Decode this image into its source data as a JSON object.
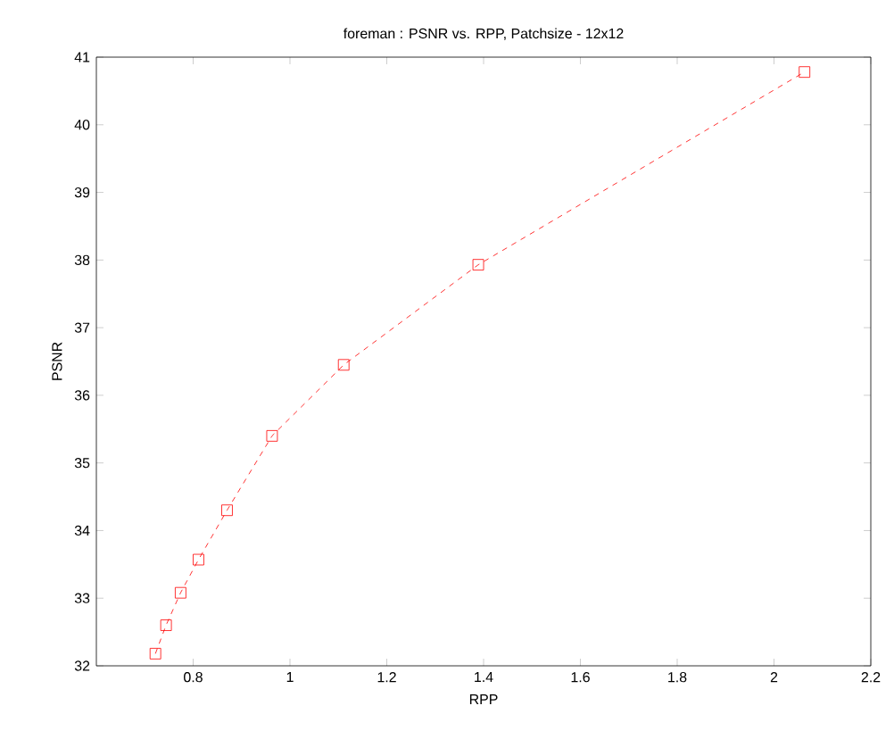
{
  "chart_data": {
    "type": "line",
    "title": "foreman : PSNR vs. RPP, Patchsize - 12x12",
    "xlabel": "RPP",
    "ylabel": "PSNR",
    "x": [
      0.722,
      0.744,
      0.774,
      0.811,
      0.87,
      0.963,
      1.111,
      1.389,
      2.063
    ],
    "series": [
      {
        "color": "#ff0000",
        "values": [
          32.18,
          32.6,
          33.08,
          33.57,
          34.3,
          35.4,
          36.45,
          37.93,
          40.78
        ]
      }
    ],
    "xlim": [
      0.6,
      2.2
    ],
    "ylim": [
      32,
      41
    ],
    "xticks": [
      0.8,
      1,
      1.2,
      1.4,
      1.6,
      1.8,
      2,
      2.2
    ],
    "yticks": [
      32,
      33,
      34,
      35,
      36,
      37,
      38,
      39,
      40,
      41
    ],
    "marker": "square",
    "line_style": "dashed",
    "grid": false
  }
}
